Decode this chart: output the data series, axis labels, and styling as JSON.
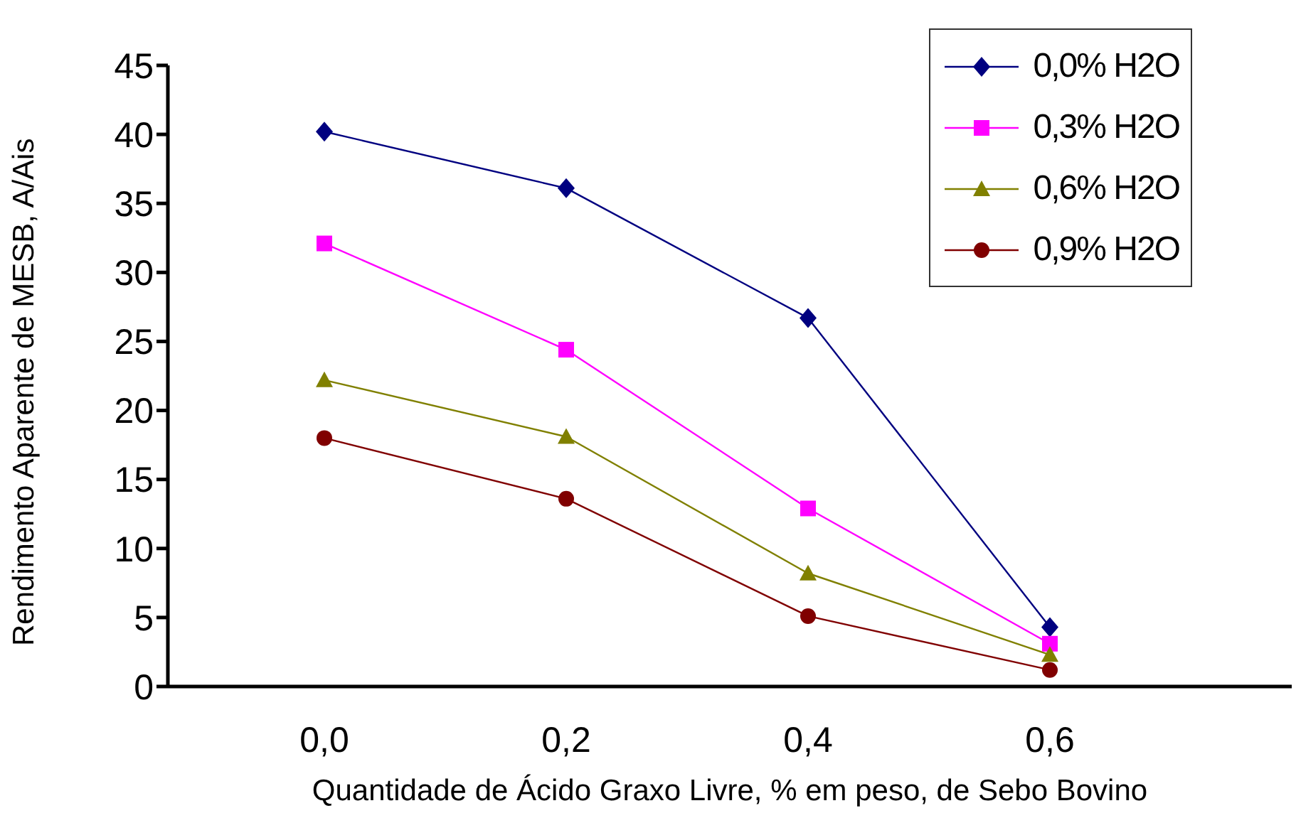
{
  "chart_data": {
    "type": "line",
    "xlabel": "Quantidade de Ácido Graxo Livre, % em peso, de Sebo Bovino",
    "ylabel": "Rendimento Aparente de MESB, A/Ais",
    "categories": [
      "0,0",
      "0,2",
      "0,4",
      "0,6"
    ],
    "ylim": [
      0,
      45
    ],
    "yticks": [
      0,
      5,
      10,
      15,
      20,
      25,
      30,
      35,
      40,
      45
    ],
    "grid": false,
    "legend": "top right",
    "series": [
      {
        "name": "0,0% H2O",
        "color": "#000080",
        "marker": "diamond",
        "values": [
          40.2,
          36.1,
          26.7,
          4.3
        ]
      },
      {
        "name": "0,3% H2O",
        "color": "#ff00ff",
        "marker": "square",
        "values": [
          32.1,
          24.4,
          12.9,
          3.1
        ]
      },
      {
        "name": "0,6% H2O",
        "color": "#808000",
        "marker": "triangle",
        "values": [
          22.2,
          18.1,
          8.2,
          2.3
        ]
      },
      {
        "name": "0,9% H2O",
        "color": "#800000",
        "marker": "circle",
        "values": [
          18.0,
          13.6,
          5.1,
          1.2
        ]
      }
    ]
  }
}
